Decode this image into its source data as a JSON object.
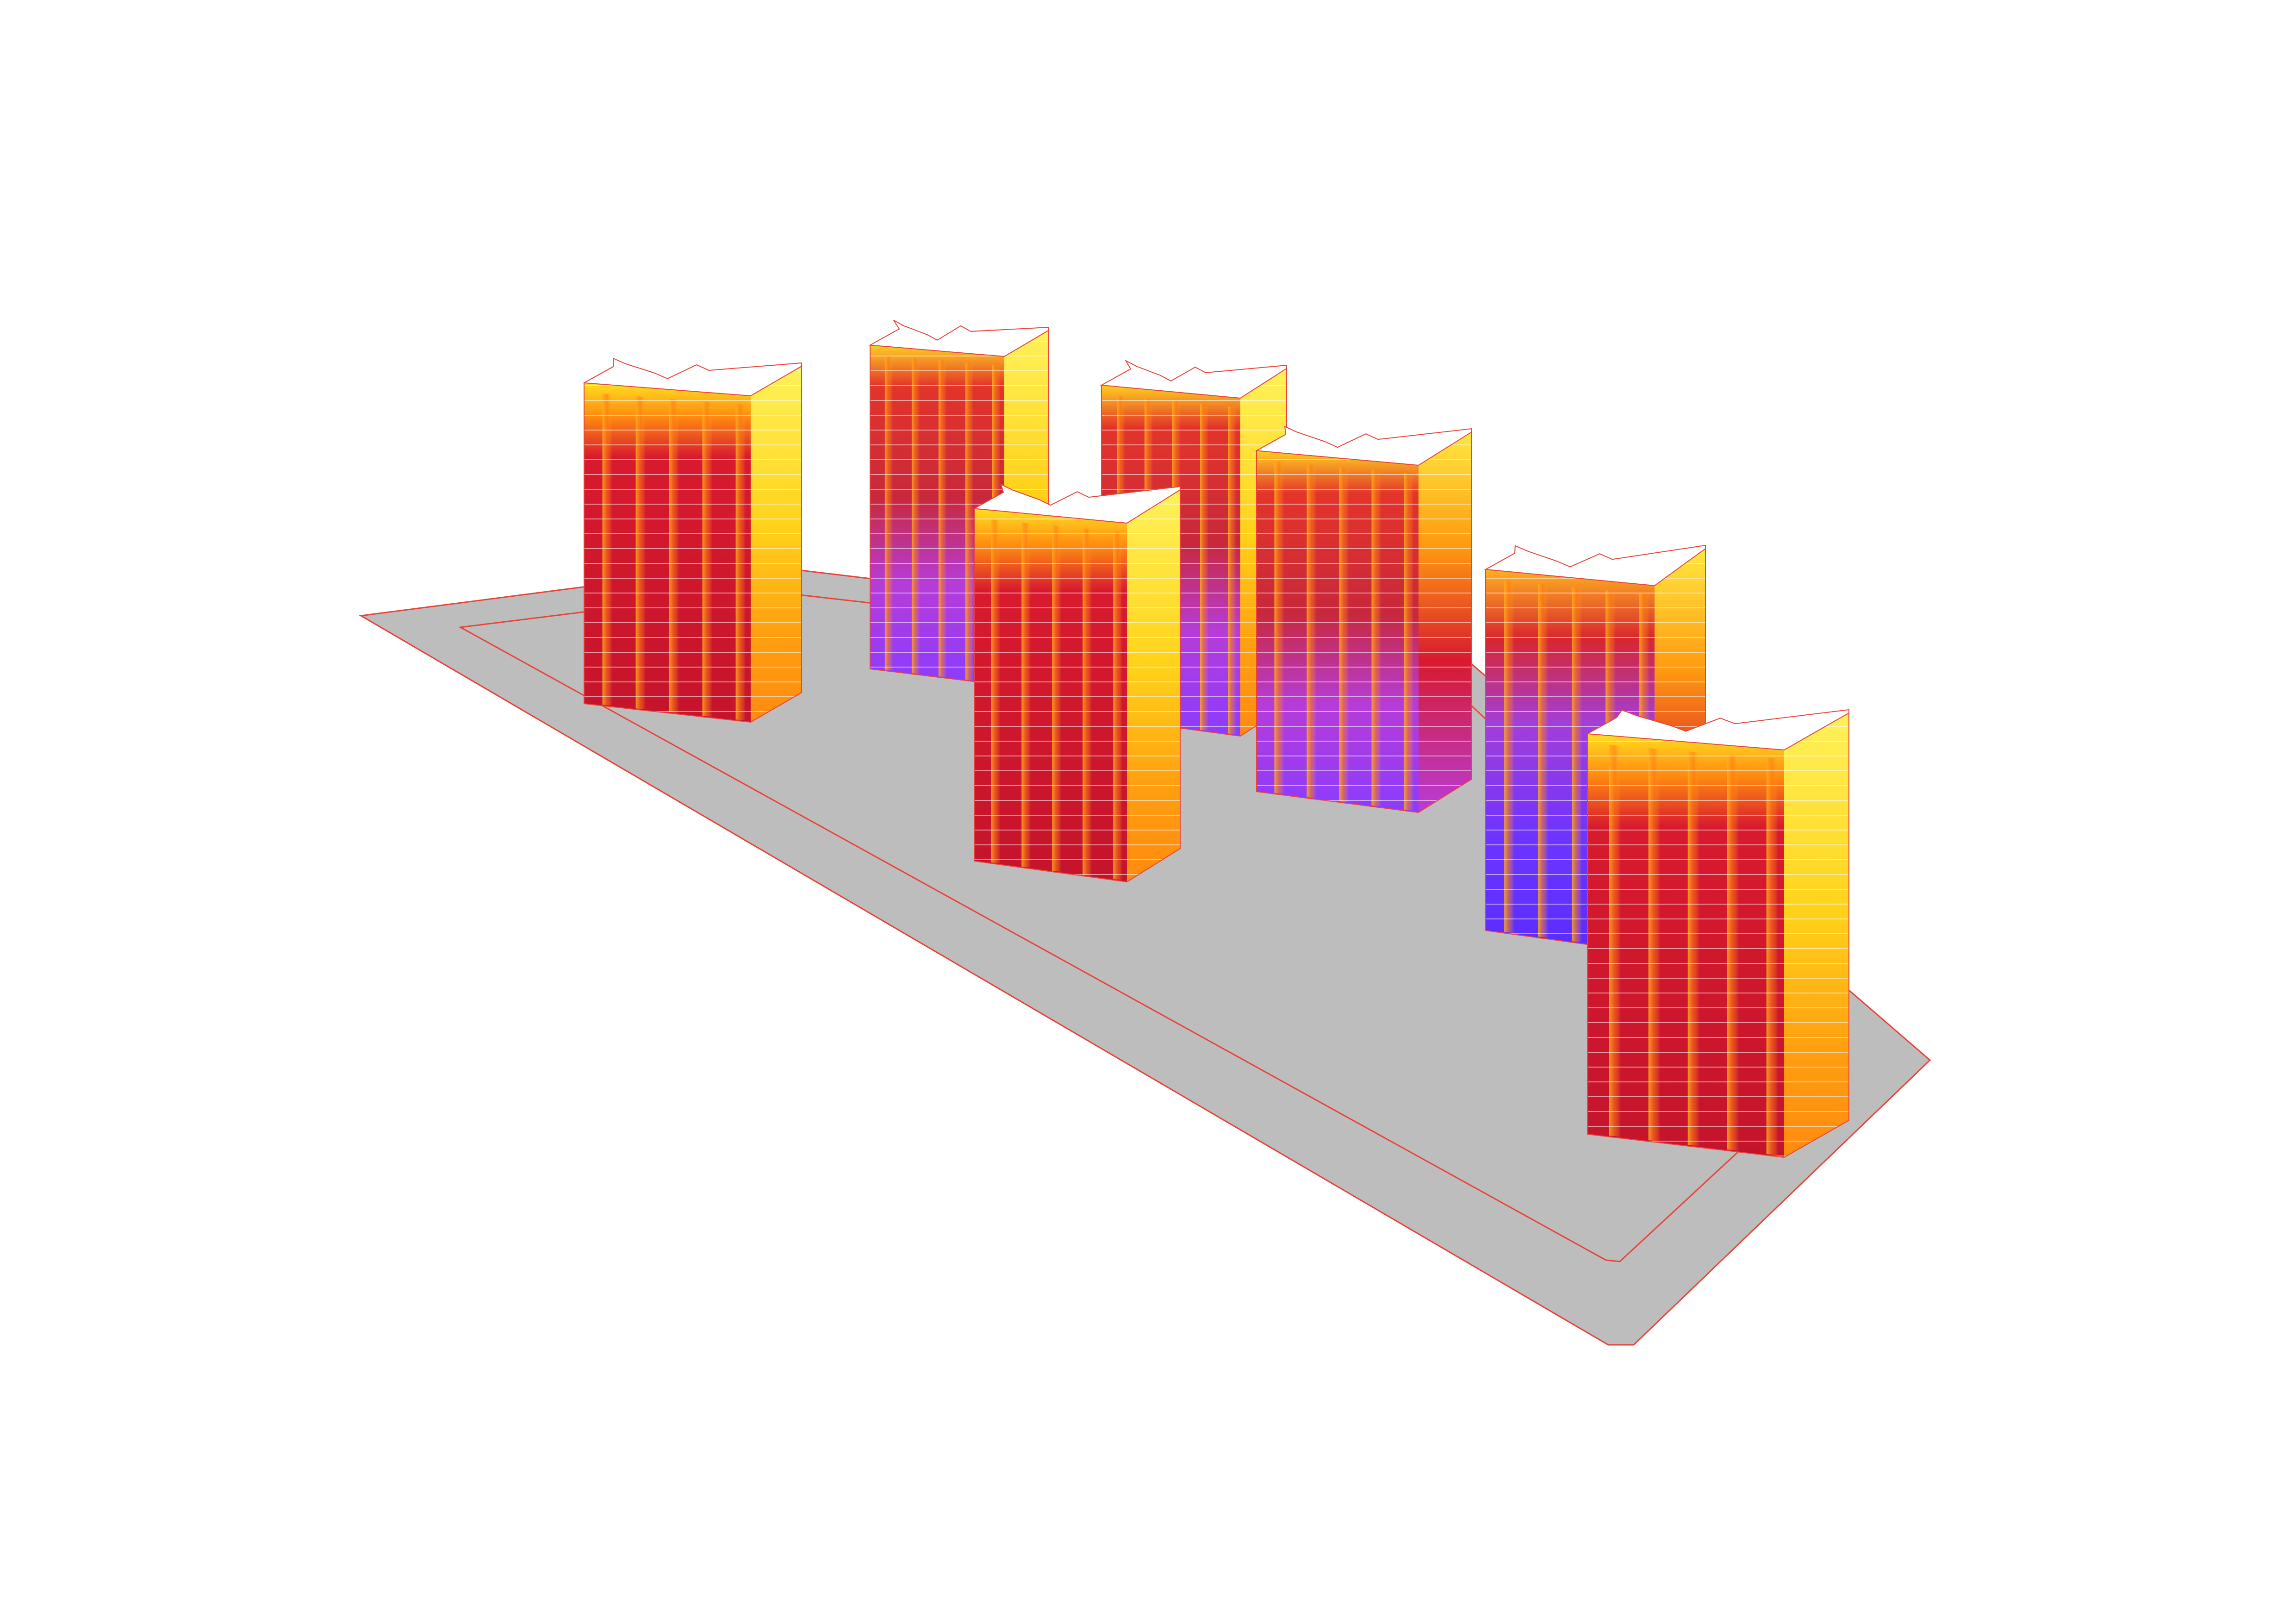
{
  "diagram": {
    "kind": "solar-radiation-analysis-axonometric",
    "building_count": 7,
    "colors": {
      "background": "#ffffff",
      "site_fill": "#bdbdbd",
      "site_outline": "#e8443a",
      "roof": "#ffffff",
      "floor_line": "#ffffff",
      "scale_high": "#ffff5a",
      "scale_mid_high": "#ff9a10",
      "scale_mid": "#d81a2e",
      "scale_low": "#b23cff",
      "scale_lowest": "#6a2cff"
    }
  }
}
